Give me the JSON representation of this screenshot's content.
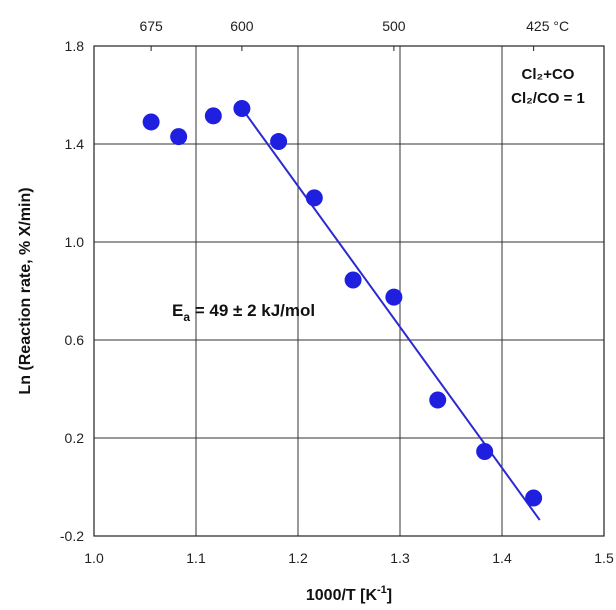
{
  "chart_data": {
    "type": "scatter",
    "title": "",
    "xlabel": "1000/T [K",
    "xlabel_sup": "-1",
    "xlabel_end": "]",
    "ylabel": "Ln (Reaction rate, % X/min)",
    "xlim": [
      1.0,
      1.5
    ],
    "ylim": [
      -0.2,
      1.8
    ],
    "x_ticks": [
      1.0,
      1.1,
      1.2,
      1.3,
      1.4,
      1.5
    ],
    "x_tick_labels": [
      "1.0",
      "1.1",
      "1.2",
      "1.3",
      "1.4",
      "1.5"
    ],
    "y_ticks": [
      -0.2,
      0.2,
      0.6,
      1.0,
      1.4,
      1.8
    ],
    "y_tick_labels": [
      "-0.2",
      "0.2",
      "0.6",
      "1.0",
      "1.4",
      "1.8"
    ],
    "top_axis": {
      "labels": [
        "675",
        "600",
        "500",
        "425 °C"
      ],
      "x_positions": [
        1.056,
        1.145,
        1.294,
        1.431
      ]
    },
    "grid": true,
    "series": [
      {
        "x": [
          1.056,
          1.083,
          1.117,
          1.145,
          1.181,
          1.216,
          1.254,
          1.294,
          1.337,
          1.383,
          1.431
        ],
        "y": [
          1.49,
          1.43,
          1.515,
          1.545,
          1.41,
          1.18,
          0.845,
          0.775,
          0.355,
          0.145,
          -0.045
        ],
        "color": "#1f1fe0"
      }
    ],
    "fit_line": {
      "x": [
        1.145,
        1.437
      ],
      "y": [
        1.545,
        -0.135
      ],
      "color": "#2a2ad0"
    },
    "annotations": {
      "legend_line1": "Cl₂+CO",
      "legend_line2": "Cl₂/CO = 1",
      "ea_main": "E",
      "ea_sub": "a",
      "ea_rest": " = 49 ± 2 kJ/mol"
    }
  }
}
